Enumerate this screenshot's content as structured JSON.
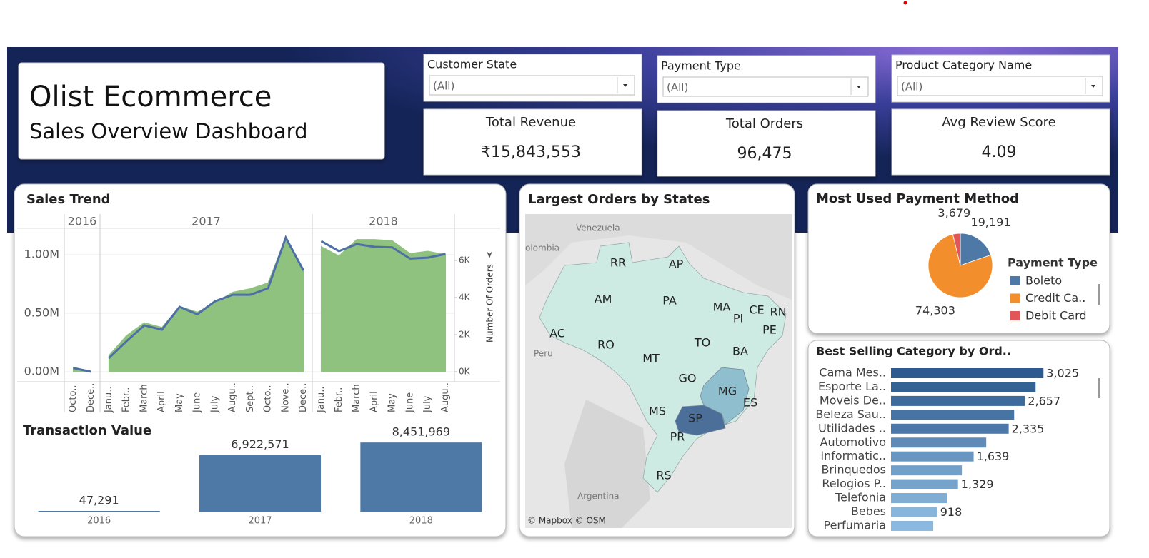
{
  "header": {
    "title": "Olist Ecommerce",
    "subtitle": "Sales Overview Dashboard"
  },
  "filters": [
    {
      "label": "Customer State",
      "value": "(All)"
    },
    {
      "label": "Payment Type",
      "value": "(All)"
    },
    {
      "label": "Product Category Name",
      "value": "(All)"
    }
  ],
  "kpis": [
    {
      "label": "Total Revenue",
      "value": "₹15,843,553"
    },
    {
      "label": "Total Orders",
      "value": "96,475"
    },
    {
      "label": "Avg Review Score",
      "value": "4.09"
    }
  ],
  "map": {
    "title": "Largest Orders by States",
    "attribution": "© Mapbox © OSM",
    "color": "#cdeae3",
    "places": [
      "Venezuela",
      "olombia",
      "Peru",
      "Argentina"
    ],
    "states": [
      {
        "label": "RR"
      },
      {
        "label": "AP"
      },
      {
        "label": "AM"
      },
      {
        "label": "PA"
      },
      {
        "label": "MA"
      },
      {
        "label": "CE"
      },
      {
        "label": "RN"
      },
      {
        "label": "PI"
      },
      {
        "label": "PE"
      },
      {
        "label": "AC"
      },
      {
        "label": "RO"
      },
      {
        "label": "TO"
      },
      {
        "label": "MT"
      },
      {
        "label": "BA"
      },
      {
        "label": "GO"
      },
      {
        "label": "MG",
        "color": "#8fbfcf"
      },
      {
        "label": "ES"
      },
      {
        "label": "MS"
      },
      {
        "label": "SP",
        "color": "#4c6f9a"
      },
      {
        "label": "PR"
      },
      {
        "label": "RS"
      }
    ]
  },
  "chart_data": [
    {
      "type": "area-line",
      "title": "Sales Trend",
      "y2_label": "Number Of Orders",
      "groups": [
        {
          "label": "2016",
          "categories": [
            "Octo..",
            "Dece.."
          ]
        },
        {
          "label": "2017",
          "categories": [
            "Janu..",
            "Febr..",
            "March",
            "April",
            "May",
            "June",
            "July",
            "Augu..",
            "Sept..",
            "Octo..",
            "Nove..",
            "Dece.."
          ]
        },
        {
          "label": "2018",
          "categories": [
            "Janu..",
            "Febr..",
            "March",
            "April",
            "May",
            "June",
            "July",
            "Augu.."
          ]
        }
      ],
      "series": [
        {
          "color": "#8fc27e",
          "values": [
            0.04,
            0.0,
            0.14,
            0.31,
            0.42,
            0.38,
            0.56,
            0.51,
            0.59,
            0.68,
            0.71,
            0.76,
            1.15,
            0.87,
            1.07,
            0.99,
            1.13,
            1.13,
            1.12,
            1.01,
            1.03,
            1.0
          ]
        },
        {
          "color": "#4e6fa5",
          "axis": "y2",
          "values": [
            0.2,
            0.0,
            0.73,
            1.65,
            2.5,
            2.27,
            3.5,
            3.1,
            3.8,
            4.15,
            4.15,
            4.5,
            7.23,
            5.46,
            7.04,
            6.5,
            6.88,
            6.73,
            6.7,
            6.1,
            6.15,
            6.35
          ]
        }
      ],
      "ylim": [
        -0.085,
        1.225
      ],
      "yticks": [
        {
          "value": 0,
          "label": "0.00M"
        },
        {
          "value": 0.5,
          "label": "0.50M"
        },
        {
          "value": 1,
          "label": "1.00M"
        }
      ],
      "y2lim": [
        -0.54,
        7.73
      ],
      "y2ticks": [
        {
          "value": 0,
          "label": "0K"
        },
        {
          "value": 2,
          "label": "2K"
        },
        {
          "value": 4,
          "label": "4K"
        },
        {
          "value": 6,
          "label": "6K"
        }
      ],
      "grid": true
    },
    {
      "type": "bar",
      "title": "Transaction Value",
      "categories": [
        "2016",
        "2017",
        "2018"
      ],
      "values": [
        47291,
        6922571,
        8451969
      ],
      "value_labels": [
        "47,291",
        "6,922,571",
        "8,451,969"
      ],
      "color": "#4e79a7",
      "ylim": [
        0,
        9600000
      ]
    },
    {
      "type": "pie",
      "title": "Most Used Payment Method",
      "legend_title": "Payment Type",
      "categories": [
        "Boleto",
        "Credit Ca..",
        "Debit Card"
      ],
      "values": [
        19191,
        74303,
        3679
      ],
      "value_labels": [
        "19,191",
        "74,303",
        "3,679"
      ],
      "colors": [
        "#4e79a7",
        "#f28e2b",
        "#e15759"
      ]
    },
    {
      "type": "hbar",
      "title": "Best Selling Category by Ord..",
      "categories": [
        "Cama Mes..",
        "Esporte La..",
        "Moveis De..",
        "Beleza Sau..",
        "Utilidades ..",
        "Automotivo",
        "Informatic..",
        "Brinquedos",
        "Relogios P..",
        "Telefonia",
        "Bebes",
        "Perfumaria"
      ],
      "values": [
        3025,
        2869,
        2657,
        2443,
        2335,
        1889,
        1639,
        1406,
        1329,
        1108,
        918,
        838
      ],
      "value_labels": [
        "3,025",
        null,
        "2,657",
        null,
        "2,335",
        null,
        "1,639",
        null,
        "1,329",
        null,
        "918",
        null
      ],
      "color_low": "#8ab8de",
      "color_high": "#2e5b8f",
      "xlim": [
        0,
        4000
      ]
    }
  ]
}
